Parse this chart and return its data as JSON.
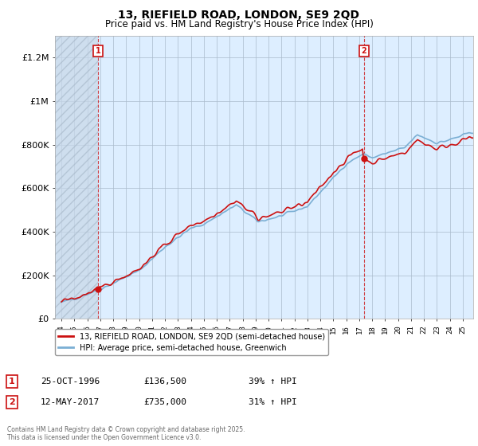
{
  "title": "13, RIEFIELD ROAD, LONDON, SE9 2QD",
  "subtitle": "Price paid vs. HM Land Registry's House Price Index (HPI)",
  "legend_line1": "13, RIEFIELD ROAD, LONDON, SE9 2QD (semi-detached house)",
  "legend_line2": "HPI: Average price, semi-detached house, Greenwich",
  "footer": "Contains HM Land Registry data © Crown copyright and database right 2025.\nThis data is licensed under the Open Government Licence v3.0.",
  "sale1_date": "25-OCT-1996",
  "sale1_price": 136500,
  "sale1_price_str": "£136,500",
  "sale1_hpi": "39% ↑ HPI",
  "sale1_label": "1",
  "sale1_year": 1996.82,
  "sale2_date": "12-MAY-2017",
  "sale2_price": 735000,
  "sale2_price_str": "£735,000",
  "sale2_hpi": "31% ↑ HPI",
  "sale2_label": "2",
  "sale2_year": 2017.37,
  "xlim": [
    1993.5,
    2025.8
  ],
  "ylim": [
    0,
    1300000
  ],
  "yticks": [
    0,
    200000,
    400000,
    600000,
    800000,
    1000000,
    1200000
  ],
  "ytick_labels": [
    "£0",
    "£200K",
    "£400K",
    "£600K",
    "£800K",
    "£1M",
    "£1.2M"
  ],
  "hpi_color": "#7bafd4",
  "price_color": "#cc1111",
  "vline_color": "#cc1111",
  "plot_bg_color": "#ddeeff",
  "background_color": "#ffffff",
  "grid_color": "#aabbcc",
  "box_border_color": "#cc1111"
}
